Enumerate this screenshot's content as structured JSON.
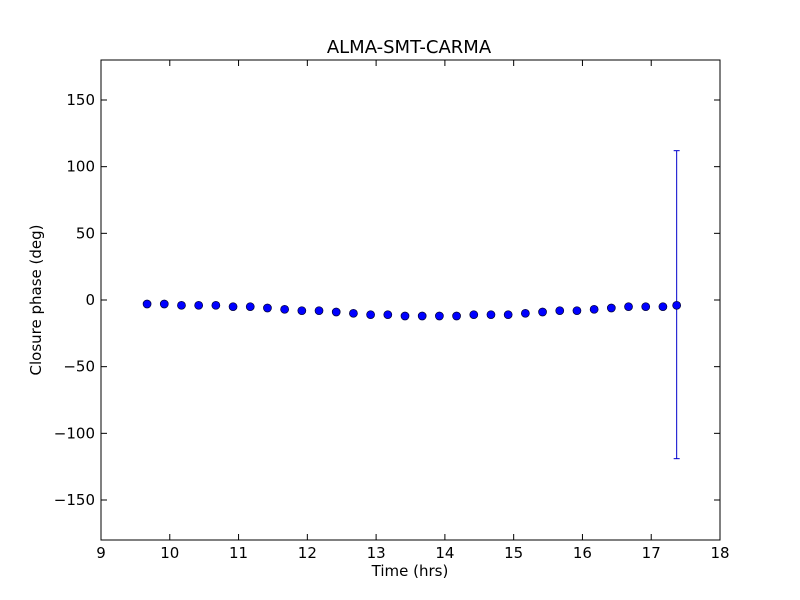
{
  "chart_data": {
    "type": "scatter",
    "title": "ALMA-SMT-CARMA",
    "xlabel": "Time (hrs)",
    "ylabel": "Closure phase (deg)",
    "xlim": [
      9,
      18
    ],
    "ylim": [
      -180,
      180
    ],
    "xticks": [
      9,
      10,
      11,
      12,
      13,
      14,
      15,
      16,
      17,
      18
    ],
    "xtick_labels": [
      "9",
      "10",
      "11",
      "12",
      "13",
      "14",
      "15",
      "16",
      "17",
      "18"
    ],
    "yticks": [
      150,
      100,
      50,
      0,
      -50,
      -100,
      -150
    ],
    "ytick_labels": [
      "150",
      "100",
      "50",
      "0",
      "−50",
      "−100",
      "−150"
    ],
    "grid": false,
    "marker_color": "#0000ff",
    "errorbar_color": "#0000cc",
    "series": [
      {
        "x": [
          9.67,
          9.92,
          10.17,
          10.42,
          10.67,
          10.92,
          11.17,
          11.42,
          11.67,
          11.92,
          12.17,
          12.42,
          12.67,
          12.92,
          13.17,
          13.42,
          13.67,
          13.92,
          14.17,
          14.42,
          14.67,
          14.92,
          15.17,
          15.42,
          15.67,
          15.92,
          16.17,
          16.42,
          16.67,
          16.92,
          17.17,
          17.37
        ],
        "y": [
          -3,
          -3,
          -4,
          -4,
          -4,
          -5,
          -5,
          -6,
          -7,
          -8,
          -8,
          -9,
          -10,
          -11,
          -11,
          -12,
          -12,
          -12,
          -12,
          -11,
          -11,
          -11,
          -10,
          -9,
          -8,
          -8,
          -7,
          -6,
          -5,
          -5,
          -5,
          -4
        ],
        "yerr_lower": [
          0,
          0,
          0,
          0,
          0,
          0,
          0,
          0,
          0,
          0,
          0,
          0,
          0,
          0,
          0,
          0,
          0,
          0,
          0,
          0,
          0,
          0,
          0,
          0,
          0,
          0,
          0,
          0,
          0,
          0,
          0,
          115
        ],
        "yerr_upper": [
          0,
          0,
          0,
          0,
          0,
          0,
          0,
          0,
          0,
          0,
          0,
          0,
          0,
          0,
          0,
          0,
          0,
          0,
          0,
          0,
          0,
          0,
          0,
          0,
          0,
          0,
          0,
          0,
          0,
          0,
          0,
          116
        ]
      }
    ]
  }
}
